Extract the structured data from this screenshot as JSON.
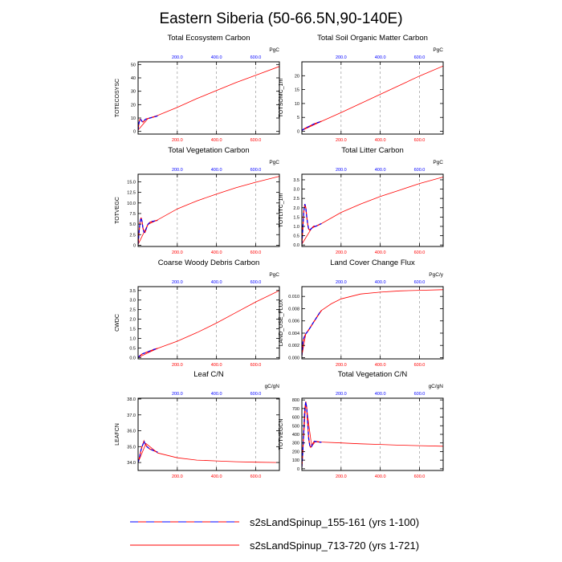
{
  "title": "Eastern Siberia (50-66.5N,90-140E)",
  "legend": [
    {
      "label": "s2sLandSpinup_155-161 (yrs 1-100)",
      "style": "dashed",
      "colors": [
        "#ff0000",
        "#0000ff"
      ]
    },
    {
      "label": "s2sLandSpinup_713-720 (yrs 1-721)",
      "style": "solid",
      "colors": [
        "#ff0000"
      ]
    }
  ],
  "colors": {
    "series_short": "#0000ff",
    "series_long": "#ff0000",
    "top_ticks": "#0000ff",
    "bottom_ticks": "#ff0000",
    "grid": "#999999"
  },
  "chart_data": [
    {
      "type": "line",
      "title": "Total Ecosystem Carbon",
      "ylabel": "TOTECOSYSC",
      "unit": "PgC",
      "xlim": [
        0,
        721
      ],
      "ylim": [
        -2,
        52
      ],
      "yticks": [
        0,
        10,
        20,
        30,
        40,
        50
      ],
      "ytick_labels": [
        "0",
        "10",
        "20",
        "30",
        "40",
        "50"
      ],
      "xticks": [
        200,
        400,
        600
      ],
      "xtick_labels": [
        "200.0",
        "400.0",
        "600.0"
      ],
      "xgrid": true,
      "series": [
        {
          "style": "dashed",
          "x": [
            0,
            5,
            10,
            15,
            20,
            25,
            30,
            35,
            40,
            45,
            50,
            55,
            60,
            65,
            70,
            75,
            80,
            85,
            90,
            95,
            100
          ],
          "y": [
            1.0,
            6.5,
            9.0,
            8.7,
            7.5,
            7.0,
            7.8,
            8.7,
            9.2,
            9.4,
            9.6,
            9.8,
            10.0,
            10.2,
            10.4,
            10.6,
            10.8,
            11.0,
            11.2,
            11.4,
            11.6
          ]
        },
        {
          "style": "solid",
          "x": [
            0,
            50,
            100,
            200,
            300,
            400,
            500,
            600,
            721
          ],
          "y": [
            1.0,
            9.6,
            12.0,
            18.0,
            24.5,
            30.5,
            36.5,
            42.0,
            48.5
          ]
        }
      ]
    },
    {
      "type": "line",
      "title": "Total Soil Organic Matter Carbon",
      "ylabel": "TOTSOMC_1m",
      "unit": "PgC",
      "xlim": [
        0,
        721
      ],
      "ylim": [
        -1,
        25
      ],
      "yticks": [
        0,
        5,
        10,
        15,
        20
      ],
      "ytick_labels": [
        "0",
        "5",
        "10",
        "15",
        "20"
      ],
      "xticks": [
        200,
        400,
        600
      ],
      "xtick_labels": [
        "200.0",
        "400.0",
        "600.0"
      ],
      "xgrid": true,
      "series": [
        {
          "style": "dashed",
          "x": [
            0,
            10,
            20,
            40,
            60,
            80,
            100
          ],
          "y": [
            0.3,
            0.8,
            1.2,
            1.9,
            2.6,
            3.1,
            3.6
          ]
        },
        {
          "style": "solid",
          "x": [
            0,
            100,
            200,
            300,
            400,
            500,
            600,
            721
          ],
          "y": [
            0.3,
            3.6,
            6.7,
            10.0,
            13.3,
            16.6,
            19.9,
            23.5
          ]
        }
      ]
    },
    {
      "type": "line",
      "title": "Total Vegetation Carbon",
      "ylabel": "TOTVEGC",
      "unit": "PgC",
      "xlim": [
        0,
        721
      ],
      "ylim": [
        -0.3,
        16.8
      ],
      "yticks": [
        0,
        2.5,
        5,
        7.5,
        10,
        12.5,
        15
      ],
      "ytick_labels": [
        "0",
        "2.5",
        "5.0",
        "7.5",
        "10.0",
        "12.5",
        "15.0"
      ],
      "xticks": [
        200,
        400,
        600
      ],
      "xtick_labels": [
        "200.0",
        "400.0",
        "600.0"
      ],
      "xgrid": true,
      "series": [
        {
          "style": "dashed",
          "x": [
            0,
            5,
            10,
            15,
            20,
            25,
            30,
            35,
            40,
            45,
            50,
            60,
            70,
            80,
            90,
            100
          ],
          "y": [
            0.2,
            3.0,
            5.5,
            6.5,
            5.6,
            4.0,
            3.1,
            3.0,
            3.7,
            4.4,
            4.9,
            5.4,
            5.6,
            5.7,
            5.8,
            5.9
          ]
        },
        {
          "style": "solid",
          "x": [
            0,
            50,
            100,
            200,
            300,
            400,
            500,
            600,
            721
          ],
          "y": [
            0.2,
            4.9,
            6.0,
            8.6,
            10.5,
            12.1,
            13.6,
            14.9,
            16.3
          ]
        }
      ]
    },
    {
      "type": "line",
      "title": "Total Litter Carbon",
      "ylabel": "TOTLITC_1m",
      "unit": "PgC",
      "xlim": [
        0,
        721
      ],
      "ylim": [
        -0.08,
        3.8
      ],
      "yticks": [
        0,
        0.5,
        1,
        1.5,
        2,
        2.5,
        3,
        3.5
      ],
      "ytick_labels": [
        "0.0",
        "0.5",
        "1.0",
        "1.5",
        "2.0",
        "2.5",
        "3.0",
        "3.5"
      ],
      "xticks": [
        200,
        400,
        600
      ],
      "xtick_labels": [
        "200.0",
        "400.0",
        "600.0"
      ],
      "xgrid": true,
      "series": [
        {
          "style": "dashed",
          "x": [
            0,
            5,
            10,
            15,
            20,
            25,
            30,
            35,
            40,
            45,
            50,
            55,
            60,
            70,
            80,
            90,
            100
          ],
          "y": [
            0.05,
            0.9,
            1.8,
            2.2,
            2.0,
            1.5,
            1.1,
            0.85,
            0.8,
            0.85,
            0.9,
            0.95,
            1.0,
            1.0,
            1.05,
            1.1,
            1.15
          ]
        },
        {
          "style": "solid",
          "x": [
            0,
            50,
            100,
            200,
            300,
            400,
            500,
            600,
            721
          ],
          "y": [
            0.05,
            0.9,
            1.15,
            1.75,
            2.2,
            2.6,
            2.95,
            3.3,
            3.65
          ]
        }
      ]
    },
    {
      "type": "line",
      "title": "Coarse Woody Debris Carbon",
      "ylabel": "CWDC",
      "unit": "PgC",
      "xlim": [
        0,
        721
      ],
      "ylim": [
        -0.07,
        3.7
      ],
      "yticks": [
        0,
        0.5,
        1,
        1.5,
        2,
        2.5,
        3,
        3.5
      ],
      "ytick_labels": [
        "0.0",
        "0.5",
        "1.0",
        "1.5",
        "2.0",
        "2.5",
        "3.0",
        "3.5"
      ],
      "xticks": [
        200,
        400,
        600
      ],
      "xtick_labels": [
        "200.0",
        "400.0",
        "600.0"
      ],
      "xgrid": true,
      "series": [
        {
          "style": "dashed",
          "x": [
            0,
            10,
            20,
            30,
            40,
            50,
            60,
            70,
            80,
            90,
            100
          ],
          "y": [
            0.0,
            0.1,
            0.18,
            0.22,
            0.26,
            0.3,
            0.34,
            0.38,
            0.42,
            0.45,
            0.48
          ]
        },
        {
          "style": "solid",
          "x": [
            0,
            100,
            200,
            300,
            400,
            500,
            600,
            721
          ],
          "y": [
            0.0,
            0.48,
            0.85,
            1.3,
            1.8,
            2.35,
            2.9,
            3.5
          ]
        }
      ]
    },
    {
      "type": "line",
      "title": "Land Cover Change Flux",
      "ylabel": "LAND_USE_FLUX",
      "unit": "PgC/y",
      "xlim": [
        0,
        721
      ],
      "ylim": [
        -0.0002,
        0.0116
      ],
      "yticks": [
        0,
        0.002,
        0.004,
        0.006,
        0.008,
        0.01
      ],
      "ytick_labels": [
        "0.000",
        "0.002",
        "0.004",
        "0.006",
        "0.008",
        "0.010"
      ],
      "xticks": [
        200,
        400,
        600
      ],
      "xtick_labels": [
        "200.0",
        "400.0",
        "600.0"
      ],
      "xgrid": true,
      "series": [
        {
          "style": "dashed",
          "x": [
            0,
            5,
            10,
            20,
            30,
            40,
            50,
            60,
            70,
            80,
            90,
            100
          ],
          "y": [
            0.0003,
            0.0024,
            0.0032,
            0.0039,
            0.0043,
            0.0048,
            0.0053,
            0.0058,
            0.0063,
            0.0068,
            0.0073,
            0.0077
          ]
        },
        {
          "style": "solid",
          "x": [
            0,
            20,
            50,
            100,
            150,
            200,
            300,
            400,
            500,
            600,
            721
          ],
          "y": [
            0.0003,
            0.0039,
            0.0053,
            0.0077,
            0.0088,
            0.0096,
            0.0104,
            0.0107,
            0.0109,
            0.011,
            0.0111
          ]
        }
      ]
    },
    {
      "type": "line",
      "title": "Leaf C/N",
      "ylabel": "LEAFCN",
      "unit": "gC/gN",
      "xlim": [
        0,
        721
      ],
      "ylim": [
        33.5,
        38.05
      ],
      "yticks": [
        34,
        35,
        36,
        37,
        38
      ],
      "ytick_labels": [
        "34.0",
        "35.0",
        "36.0",
        "37.0",
        "38.0"
      ],
      "xticks": [
        200,
        400,
        600
      ],
      "xtick_labels": [
        "200.0",
        "400.0",
        "600.0"
      ],
      "xgrid": true,
      "series": [
        {
          "style": "dashed",
          "x": [
            0,
            5,
            10,
            15,
            20,
            25,
            30,
            35,
            40,
            45,
            50,
            55,
            60,
            70,
            80,
            90,
            100
          ],
          "y": [
            34.0,
            34.2,
            34.5,
            34.8,
            35.0,
            35.15,
            35.35,
            35.2,
            35.1,
            35.0,
            34.95,
            34.9,
            34.85,
            34.8,
            34.75,
            34.7,
            34.65
          ]
        },
        {
          "style": "solid",
          "x": [
            0,
            40,
            100,
            200,
            300,
            400,
            500,
            600,
            721
          ],
          "y": [
            34.0,
            35.2,
            34.6,
            34.3,
            34.15,
            34.1,
            34.05,
            34.02,
            34.0
          ]
        }
      ]
    },
    {
      "type": "line",
      "title": "Total Vegetation C/N",
      "ylabel": "TOTVEGCN",
      "unit": "gC/gN",
      "xlim": [
        0,
        721
      ],
      "ylim": [
        -20,
        820
      ],
      "yticks": [
        0,
        100,
        200,
        300,
        400,
        500,
        600,
        700,
        800
      ],
      "ytick_labels": [
        "0",
        "100",
        "200",
        "300",
        "400",
        "500",
        "600",
        "700",
        "800"
      ],
      "xticks": [
        200,
        400,
        600
      ],
      "xtick_labels": [
        "200.0",
        "400.0",
        "600.0"
      ],
      "xgrid": true,
      "series": [
        {
          "style": "dashed",
          "x": [
            0,
            5,
            10,
            15,
            20,
            25,
            30,
            35,
            40,
            45,
            50,
            55,
            60,
            65,
            70,
            80,
            90,
            100
          ],
          "y": [
            20,
            200,
            450,
            700,
            780,
            700,
            520,
            350,
            270,
            250,
            260,
            290,
            310,
            320,
            315,
            312,
            310,
            308
          ]
        },
        {
          "style": "solid",
          "x": [
            0,
            20,
            50,
            70,
            100,
            200,
            300,
            400,
            500,
            600,
            721
          ],
          "y": [
            20,
            780,
            260,
            320,
            310,
            300,
            290,
            282,
            274,
            268,
            262
          ]
        }
      ]
    }
  ]
}
